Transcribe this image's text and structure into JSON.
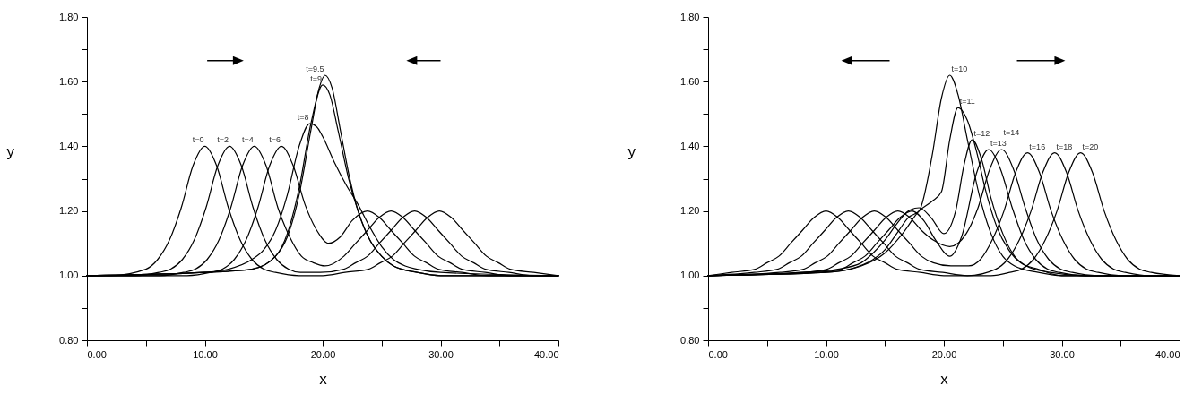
{
  "chart_data": [
    {
      "type": "line",
      "xlabel": "x",
      "ylabel": "y",
      "xlim": [
        0,
        40
      ],
      "ylim": [
        0.8,
        1.8
      ],
      "grid": false,
      "line_style": "solid",
      "xticks": [
        {
          "value": 0,
          "label": "0.00"
        },
        {
          "value": 5,
          "label": null
        },
        {
          "value": 10,
          "label": "10.00"
        },
        {
          "value": 15,
          "label": null
        },
        {
          "value": 20,
          "label": "20.00"
        },
        {
          "value": 25,
          "label": null
        },
        {
          "value": 30,
          "label": "30.00"
        },
        {
          "value": 35,
          "label": null
        },
        {
          "value": 40,
          "label": "40.00"
        }
      ],
      "yticks": [
        {
          "value": 0.8,
          "label": "0.80"
        },
        {
          "value": 0.9,
          "label": null
        },
        {
          "value": 1.0,
          "label": "1.00"
        },
        {
          "value": 1.1,
          "label": null
        },
        {
          "value": 1.2,
          "label": "1.20"
        },
        {
          "value": 1.3,
          "label": null
        },
        {
          "value": 1.4,
          "label": "1.40"
        },
        {
          "value": 1.5,
          "label": null
        },
        {
          "value": 1.6,
          "label": "1.60"
        },
        {
          "value": 1.7,
          "label": null
        },
        {
          "value": 1.8,
          "label": "1.80"
        }
      ],
      "series": [
        {
          "name": "t=0",
          "color": "#000000",
          "x": [
            0,
            2,
            5,
            6,
            7,
            8,
            9,
            10,
            11,
            12,
            13,
            14,
            15,
            16,
            18,
            20,
            21.9,
            23.9,
            24.9,
            25.9,
            26.9,
            27.9,
            28.9,
            29.9,
            30.9,
            31.9,
            32.9,
            33.9,
            34.9,
            35.9,
            37.9,
            40
          ],
          "values": [
            1.0,
            1.0,
            1.02,
            1.05,
            1.11,
            1.21,
            1.34,
            1.4,
            1.34,
            1.21,
            1.11,
            1.05,
            1.02,
            1.01,
            1.0,
            1.0,
            1.01,
            1.02,
            1.04,
            1.06,
            1.1,
            1.14,
            1.18,
            1.2,
            1.18,
            1.14,
            1.1,
            1.06,
            1.04,
            1.02,
            1.01,
            1.0
          ]
        },
        {
          "name": "t=2",
          "color": "#000000",
          "x": [
            0,
            4.1,
            6.1,
            7.1,
            8.1,
            9.1,
            10.1,
            11.1,
            12.1,
            13.1,
            14.1,
            15.1,
            16.1,
            17.1,
            18.1,
            19.8,
            21.8,
            22.8,
            23.8,
            24.8,
            25.8,
            26.8,
            27.8,
            28.8,
            29.8,
            30.8,
            31.8,
            32.8,
            33.8,
            35.8,
            37.8,
            40
          ],
          "values": [
            1.0,
            1.0,
            1.01,
            1.02,
            1.05,
            1.11,
            1.21,
            1.34,
            1.4,
            1.34,
            1.21,
            1.11,
            1.05,
            1.02,
            1.01,
            1.01,
            1.02,
            1.04,
            1.06,
            1.1,
            1.14,
            1.18,
            1.2,
            1.18,
            1.14,
            1.1,
            1.06,
            1.04,
            1.02,
            1.01,
            1.0,
            1.0
          ]
        },
        {
          "name": "t=4",
          "color": "#000000",
          "x": [
            0,
            6.2,
            8.2,
            9.2,
            10.2,
            11.2,
            12.2,
            13.2,
            14.2,
            15.2,
            16.2,
            17.2,
            18.2,
            19.2,
            20.2,
            21.8,
            22.8,
            23.8,
            24.8,
            25.8,
            26.8,
            27.8,
            28.8,
            29.8,
            30.8,
            31.8,
            33.8,
            35.8,
            40
          ],
          "values": [
            1.0,
            1.0,
            1.01,
            1.02,
            1.05,
            1.11,
            1.21,
            1.34,
            1.4,
            1.34,
            1.21,
            1.12,
            1.06,
            1.04,
            1.03,
            1.06,
            1.1,
            1.14,
            1.18,
            1.2,
            1.18,
            1.14,
            1.1,
            1.06,
            1.04,
            1.02,
            1.01,
            1.0,
            1.0
          ]
        },
        {
          "name": "t=6",
          "color": "#000000",
          "x": [
            0,
            8.5,
            10.5,
            11.5,
            12.5,
            13.5,
            14.5,
            15.5,
            16.5,
            17.5,
            18.5,
            19.5,
            20.5,
            21.5,
            22.5,
            23.8,
            24.8,
            25.8,
            26.8,
            27.8,
            28.8,
            29.8,
            31.8,
            34,
            40
          ],
          "values": [
            1.0,
            1.0,
            1.01,
            1.02,
            1.05,
            1.11,
            1.21,
            1.34,
            1.4,
            1.34,
            1.22,
            1.14,
            1.1,
            1.12,
            1.17,
            1.2,
            1.18,
            1.14,
            1.1,
            1.06,
            1.04,
            1.02,
            1.01,
            1.0,
            1.0
          ]
        },
        {
          "name": "t=8",
          "color": "#000000",
          "x": [
            0,
            10,
            12,
            14,
            15,
            16,
            17,
            18,
            18.9,
            19.5,
            20,
            21,
            22,
            23,
            24,
            25,
            26,
            27,
            28,
            30,
            40
          ],
          "values": [
            1.0,
            1.01,
            1.02,
            1.05,
            1.08,
            1.14,
            1.25,
            1.4,
            1.47,
            1.46,
            1.43,
            1.35,
            1.28,
            1.22,
            1.15,
            1.09,
            1.05,
            1.03,
            1.02,
            1.01,
            1.0
          ]
        },
        {
          "name": "t=9",
          "color": "#000000",
          "x": [
            0,
            10,
            14,
            16,
            17,
            18,
            19,
            20,
            20.6,
            21.3,
            22.2,
            23,
            24,
            25,
            26,
            28,
            30,
            40
          ],
          "values": [
            1.0,
            1.01,
            1.02,
            1.06,
            1.13,
            1.27,
            1.47,
            1.59,
            1.56,
            1.45,
            1.3,
            1.2,
            1.11,
            1.06,
            1.03,
            1.01,
            1.0,
            1.0
          ]
        },
        {
          "name": "t=9.5",
          "color": "#000000",
          "x": [
            0,
            10,
            14,
            16,
            17,
            18,
            19,
            19.7,
            20.2,
            20.8,
            21.5,
            22.3,
            23,
            24,
            25,
            26,
            28,
            30,
            40
          ],
          "values": [
            1.0,
            1.01,
            1.02,
            1.06,
            1.12,
            1.25,
            1.45,
            1.58,
            1.62,
            1.58,
            1.45,
            1.3,
            1.2,
            1.11,
            1.06,
            1.03,
            1.01,
            1.0,
            1.0
          ]
        }
      ]
    },
    {
      "type": "line",
      "xlabel": "x",
      "ylabel": "y",
      "xlim": [
        0,
        40
      ],
      "ylim": [
        0.8,
        1.8
      ],
      "grid": false,
      "line_style": "solid",
      "xticks": [
        {
          "value": 0,
          "label": "0.00"
        },
        {
          "value": 5,
          "label": null
        },
        {
          "value": 10,
          "label": "10.00"
        },
        {
          "value": 15,
          "label": null
        },
        {
          "value": 20,
          "label": "20.00"
        },
        {
          "value": 25,
          "label": null
        },
        {
          "value": 30,
          "label": "30.00"
        },
        {
          "value": 35,
          "label": null
        },
        {
          "value": 40,
          "label": "40.00"
        }
      ],
      "yticks": [
        {
          "value": 0.8,
          "label": "0.80"
        },
        {
          "value": 0.9,
          "label": null
        },
        {
          "value": 1.0,
          "label": "1.00"
        },
        {
          "value": 1.1,
          "label": null
        },
        {
          "value": 1.2,
          "label": "1.20"
        },
        {
          "value": 1.3,
          "label": null
        },
        {
          "value": 1.4,
          "label": "1.40"
        },
        {
          "value": 1.5,
          "label": null
        },
        {
          "value": 1.6,
          "label": "1.60"
        },
        {
          "value": 1.7,
          "label": null
        },
        {
          "value": 1.8,
          "label": "1.80"
        }
      ],
      "series": [
        {
          "name": "t=10",
          "color": "#000000",
          "x": [
            0,
            10,
            12,
            14,
            15,
            16,
            17,
            17.9,
            19,
            19.8,
            20.5,
            21.2,
            22,
            23,
            24,
            25,
            26,
            28,
            30,
            40
          ],
          "values": [
            1.0,
            1.01,
            1.02,
            1.05,
            1.08,
            1.13,
            1.18,
            1.2,
            1.37,
            1.55,
            1.62,
            1.56,
            1.42,
            1.25,
            1.13,
            1.06,
            1.03,
            1.01,
            1.0,
            1.0
          ]
        },
        {
          "name": "t=11",
          "color": "#000000",
          "x": [
            0,
            10,
            13,
            15,
            16.5,
            17.9,
            19,
            19.8,
            20.5,
            21.2,
            22,
            22.8,
            23.5,
            24.5,
            25.5,
            26.5,
            28,
            30,
            40
          ],
          "values": [
            1.0,
            1.01,
            1.03,
            1.07,
            1.13,
            1.2,
            1.23,
            1.26,
            1.42,
            1.52,
            1.48,
            1.38,
            1.27,
            1.15,
            1.08,
            1.04,
            1.02,
            1.0,
            1.0
          ]
        },
        {
          "name": "t=12",
          "color": "#000000",
          "x": [
            0,
            8,
            11,
            13,
            14,
            15,
            16,
            17,
            17.9,
            18.9,
            20,
            21,
            21.7,
            22.4,
            23.2,
            24,
            25,
            26,
            27,
            29,
            32,
            40
          ],
          "values": [
            1.0,
            1.01,
            1.02,
            1.04,
            1.07,
            1.11,
            1.16,
            1.2,
            1.21,
            1.18,
            1.13,
            1.2,
            1.34,
            1.42,
            1.36,
            1.24,
            1.13,
            1.06,
            1.03,
            1.01,
            1.0,
            1.0
          ]
        },
        {
          "name": "t=13",
          "color": "#000000",
          "x": [
            0,
            9.3,
            11.3,
            12.3,
            13.3,
            14.3,
            15.3,
            16.3,
            17.3,
            18.3,
            19.3,
            20.5,
            21.5,
            22.8,
            23.8,
            24.8,
            25.8,
            26.8,
            27.8,
            28.8,
            29.8,
            32,
            40
          ],
          "values": [
            1.0,
            1.01,
            1.02,
            1.04,
            1.06,
            1.1,
            1.14,
            1.18,
            1.2,
            1.17,
            1.11,
            1.06,
            1.12,
            1.32,
            1.39,
            1.33,
            1.21,
            1.11,
            1.05,
            1.02,
            1.01,
            1.0,
            1.0
          ]
        },
        {
          "name": "t=14",
          "color": "#000000",
          "x": [
            0,
            8.1,
            10.1,
            11.1,
            12.1,
            13.1,
            14.1,
            15.1,
            16.1,
            17.1,
            18.1,
            19.1,
            20.5,
            21.9,
            22.9,
            23.9,
            24.9,
            25.9,
            26.9,
            27.9,
            28.9,
            29.9,
            30.9,
            33,
            40
          ],
          "values": [
            1.0,
            1.01,
            1.02,
            1.04,
            1.06,
            1.1,
            1.14,
            1.18,
            1.2,
            1.18,
            1.14,
            1.11,
            1.09,
            1.13,
            1.21,
            1.33,
            1.39,
            1.33,
            1.21,
            1.11,
            1.05,
            1.02,
            1.01,
            1.0,
            1.0
          ]
        },
        {
          "name": "t=16",
          "color": "#000000",
          "x": [
            0,
            6.1,
            8.1,
            9.1,
            10.1,
            11.1,
            12.1,
            13.1,
            14.1,
            15.1,
            16.1,
            17.1,
            18.1,
            19.1,
            20.6,
            22.1,
            23.1,
            24.1,
            25.1,
            26.1,
            27.1,
            28.1,
            29.1,
            30.1,
            31.1,
            32.1,
            33.1,
            35,
            40
          ],
          "values": [
            1.0,
            1.01,
            1.02,
            1.04,
            1.06,
            1.1,
            1.14,
            1.18,
            1.2,
            1.18,
            1.14,
            1.1,
            1.06,
            1.04,
            1.03,
            1.03,
            1.05,
            1.11,
            1.2,
            1.32,
            1.38,
            1.32,
            1.2,
            1.11,
            1.05,
            1.02,
            1.01,
            1.0,
            1.0
          ]
        },
        {
          "name": "t=18",
          "color": "#000000",
          "x": [
            0,
            3.9,
            5.9,
            6.9,
            7.9,
            8.9,
            9.9,
            10.9,
            11.9,
            12.9,
            13.9,
            14.9,
            15.9,
            16.9,
            17.9,
            19.9,
            22,
            24.4,
            25.4,
            26.4,
            27.4,
            28.4,
            29.4,
            30.4,
            31.4,
            32.4,
            33.4,
            34.4,
            35.4,
            37.4,
            40
          ],
          "values": [
            1.0,
            1.01,
            1.02,
            1.04,
            1.06,
            1.1,
            1.14,
            1.18,
            1.2,
            1.18,
            1.14,
            1.1,
            1.06,
            1.04,
            1.02,
            1.01,
            1.0,
            1.02,
            1.05,
            1.11,
            1.2,
            1.32,
            1.38,
            1.32,
            1.2,
            1.11,
            1.05,
            1.02,
            1.01,
            1.0,
            1.0
          ]
        },
        {
          "name": "t=20",
          "color": "#000000",
          "x": [
            0,
            2,
            4,
            5,
            6,
            7,
            8,
            9,
            10,
            11,
            12,
            13,
            14,
            15,
            16,
            18,
            20,
            24,
            25.6,
            26.6,
            27.6,
            28.6,
            29.6,
            30.6,
            31.6,
            32.6,
            33.6,
            34.6,
            35.6,
            36.6,
            37.6,
            40
          ],
          "values": [
            1.0,
            1.01,
            1.02,
            1.04,
            1.06,
            1.1,
            1.14,
            1.18,
            1.2,
            1.18,
            1.14,
            1.1,
            1.06,
            1.04,
            1.02,
            1.01,
            1.0,
            1.0,
            1.01,
            1.02,
            1.05,
            1.11,
            1.2,
            1.32,
            1.38,
            1.32,
            1.2,
            1.11,
            1.05,
            1.02,
            1.01,
            1.0
          ]
        }
      ]
    }
  ]
}
